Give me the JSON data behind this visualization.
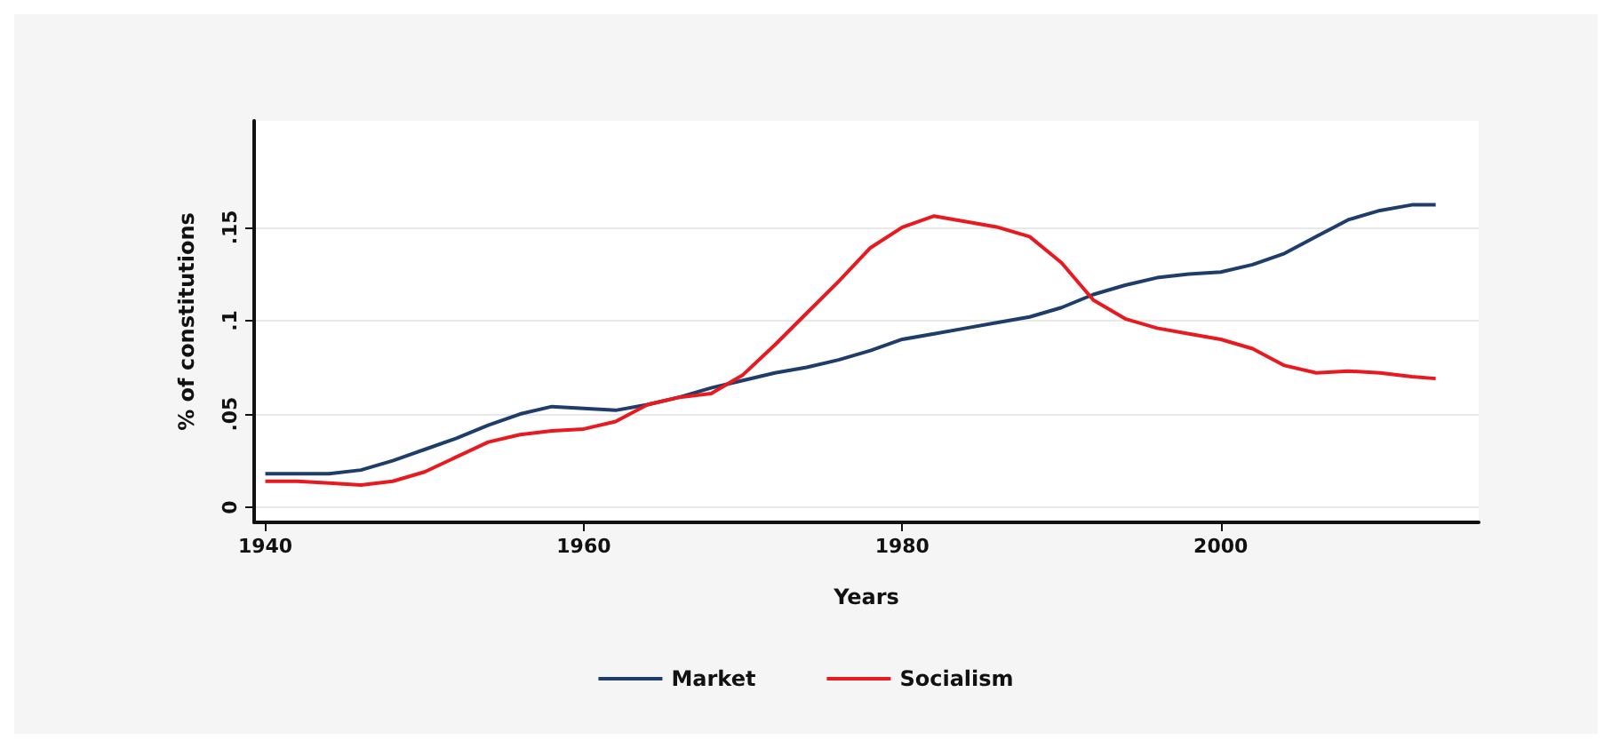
{
  "chart_data": {
    "type": "line",
    "xlabel": "Years",
    "ylabel": "% of constitutions",
    "x": [
      1940,
      1942,
      1944,
      1946,
      1948,
      1950,
      1952,
      1954,
      1956,
      1958,
      1960,
      1962,
      1964,
      1966,
      1968,
      1970,
      1972,
      1974,
      1976,
      1978,
      1980,
      1982,
      1984,
      1986,
      1988,
      1990,
      1992,
      1994,
      1996,
      1998,
      2000,
      2002,
      2004,
      2006,
      2008,
      2010,
      2012,
      2013.5
    ],
    "series": [
      {
        "name": "Market",
        "color": "#1f3d6b",
        "values": [
          0.018,
          0.018,
          0.018,
          0.02,
          0.025,
          0.031,
          0.037,
          0.044,
          0.05,
          0.054,
          0.053,
          0.052,
          0.055,
          0.059,
          0.064,
          0.068,
          0.072,
          0.075,
          0.079,
          0.084,
          0.09,
          0.093,
          0.096,
          0.099,
          0.102,
          0.107,
          0.114,
          0.119,
          0.123,
          0.125,
          0.126,
          0.13,
          0.136,
          0.145,
          0.154,
          0.159,
          0.162,
          0.162
        ]
      },
      {
        "name": "Socialism",
        "color": "#e8191f",
        "values": [
          0.014,
          0.014,
          0.013,
          0.012,
          0.014,
          0.019,
          0.027,
          0.035,
          0.039,
          0.041,
          0.042,
          0.046,
          0.055,
          0.059,
          0.061,
          0.071,
          0.087,
          0.104,
          0.121,
          0.139,
          0.15,
          0.156,
          0.153,
          0.15,
          0.145,
          0.131,
          0.111,
          0.101,
          0.096,
          0.093,
          0.09,
          0.085,
          0.076,
          0.072,
          0.073,
          0.072,
          0.07,
          0.069
        ]
      }
    ],
    "xlim": [
      1939.3,
      2016.2
    ],
    "xticks": [
      1940,
      1960,
      1980,
      2000
    ],
    "ylim": [
      -0.008,
      0.207
    ],
    "yticks": [
      0,
      {
        "value": 0.05,
        "label": ".05"
      },
      {
        "value": 0.1,
        "label": ".1"
      },
      {
        "value": 0.15,
        "label": ".15"
      }
    ],
    "grid": "y",
    "legend": "bottom",
    "line_style": "solid",
    "marker": "none"
  }
}
